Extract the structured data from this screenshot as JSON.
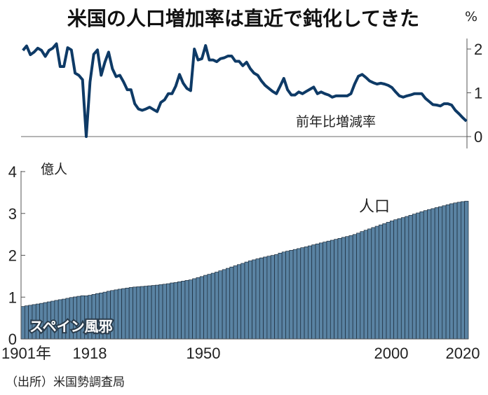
{
  "title": "米国の人口増加率は直近で鈍化してきた",
  "source": "（出所）米国勢調査局",
  "colors": {
    "line": "#0e3a66",
    "bar": "#5a83a3",
    "bar_edge": "#1b2b3a",
    "axis": "#888888"
  },
  "chart_data": [
    {
      "type": "line",
      "series": [
        {
          "name": "前年比増減率"
        }
      ],
      "unit": "%",
      "ylim": [
        0,
        2.2
      ],
      "yticks": [
        "0",
        "1",
        "2"
      ],
      "x": [
        1901,
        1902,
        1903,
        1904,
        1905,
        1906,
        1907,
        1908,
        1909,
        1910,
        1911,
        1912,
        1913,
        1914,
        1915,
        1916,
        1917,
        1918,
        1919,
        1920,
        1921,
        1922,
        1923,
        1924,
        1925,
        1926,
        1927,
        1928,
        1929,
        1930,
        1931,
        1932,
        1933,
        1934,
        1935,
        1936,
        1937,
        1938,
        1939,
        1940,
        1941,
        1942,
        1943,
        1944,
        1945,
        1946,
        1947,
        1948,
        1949,
        1950,
        1951,
        1952,
        1953,
        1954,
        1955,
        1956,
        1957,
        1958,
        1959,
        1960,
        1961,
        1962,
        1963,
        1964,
        1965,
        1966,
        1967,
        1968,
        1969,
        1970,
        1971,
        1972,
        1973,
        1974,
        1975,
        1976,
        1977,
        1978,
        1979,
        1980,
        1981,
        1982,
        1983,
        1984,
        1985,
        1986,
        1987,
        1988,
        1989,
        1990,
        1991,
        1992,
        1993,
        1994,
        1995,
        1996,
        1997,
        1998,
        1999,
        2000,
        2001,
        2002,
        2003,
        2004,
        2005,
        2006,
        2007,
        2008,
        2009,
        2010,
        2011,
        2012,
        2013,
        2014,
        2015,
        2016,
        2017,
        2018,
        2019,
        2020
      ],
      "values": [
        1.97,
        2.07,
        1.87,
        1.93,
        2.02,
        1.97,
        1.83,
        1.97,
        2.02,
        2.12,
        1.6,
        1.6,
        2.03,
        1.98,
        1.45,
        1.4,
        1.3,
        0.0,
        1.25,
        1.88,
        1.98,
        1.4,
        1.7,
        1.93,
        1.55,
        1.37,
        1.4,
        1.25,
        1.07,
        1.07,
        0.75,
        0.63,
        0.6,
        0.63,
        0.67,
        0.62,
        0.57,
        0.78,
        0.84,
        0.98,
        0.98,
        1.15,
        1.42,
        1.22,
        1.1,
        1.05,
        2.0,
        1.75,
        1.78,
        2.08,
        1.75,
        1.75,
        1.71,
        1.78,
        1.8,
        1.84,
        1.84,
        1.72,
        1.72,
        1.62,
        1.7,
        1.55,
        1.45,
        1.4,
        1.27,
        1.17,
        1.1,
        1.03,
        0.98,
        1.15,
        1.33,
        1.07,
        0.95,
        0.95,
        1.02,
        0.98,
        1.03,
        1.08,
        1.13,
        0.98,
        1.02,
        0.98,
        0.95,
        0.9,
        0.93,
        0.93,
        0.93,
        0.93,
        0.98,
        1.2,
        1.38,
        1.42,
        1.35,
        1.27,
        1.23,
        1.2,
        1.22,
        1.2,
        1.17,
        1.12,
        1.02,
        0.93,
        0.9,
        0.93,
        0.95,
        0.98,
        0.98,
        0.98,
        0.87,
        0.8,
        0.73,
        0.72,
        0.7,
        0.75,
        0.75,
        0.72,
        0.6,
        0.52,
        0.43,
        0.35
      ]
    },
    {
      "type": "bar",
      "series": [
        {
          "name": "人口"
        }
      ],
      "unit": "億人",
      "ylim": [
        0,
        4
      ],
      "yticks": [
        "0",
        "1",
        "2",
        "3",
        "4"
      ],
      "xticks": [
        "1901年",
        "1918",
        "1950",
        "2000",
        "2020"
      ],
      "annotation": "スペイン風邪",
      "x_start": 1901,
      "values": [
        0.776,
        0.792,
        0.806,
        0.822,
        0.836,
        0.851,
        0.87,
        0.887,
        0.904,
        0.922,
        0.939,
        0.953,
        0.972,
        0.991,
        1.005,
        1.02,
        1.034,
        1.032,
        1.045,
        1.065,
        1.085,
        1.1,
        1.119,
        1.141,
        1.158,
        1.174,
        1.19,
        1.204,
        1.217,
        1.231,
        1.241,
        1.248,
        1.255,
        1.262,
        1.271,
        1.279,
        1.287,
        1.298,
        1.309,
        1.321,
        1.339,
        1.349,
        1.367,
        1.383,
        1.399,
        1.412,
        1.441,
        1.466,
        1.492,
        1.522,
        1.546,
        1.572,
        1.598,
        1.629,
        1.659,
        1.689,
        1.72,
        1.749,
        1.778,
        1.807,
        1.839,
        1.867,
        1.892,
        1.916,
        1.938,
        1.959,
        1.979,
        1.997,
        2.017,
        2.052,
        2.079,
        2.099,
        2.119,
        2.139,
        2.16,
        2.182,
        2.202,
        2.225,
        2.25,
        2.272,
        2.295,
        2.317,
        2.339,
        2.36,
        2.382,
        2.404,
        2.428,
        2.448,
        2.47,
        2.497,
        2.53,
        2.567,
        2.599,
        2.63,
        2.663,
        2.694,
        2.726,
        2.756,
        2.79,
        2.821,
        2.85,
        2.876,
        2.901,
        2.928,
        2.955,
        2.984,
        3.012,
        3.041,
        3.068,
        3.093,
        3.115,
        3.139,
        3.161,
        3.184,
        3.208,
        3.232,
        3.251,
        3.268,
        3.282,
        3.293
      ]
    }
  ]
}
